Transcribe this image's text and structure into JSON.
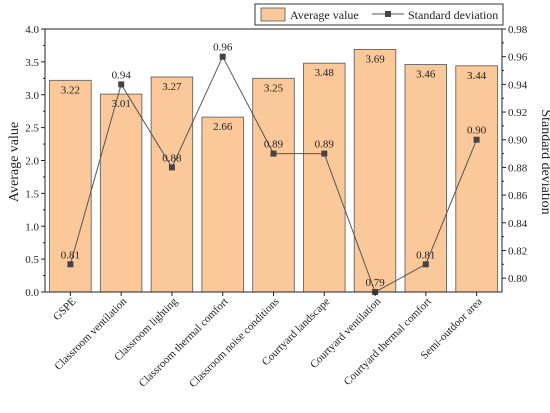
{
  "chart_data": {
    "type": "bar",
    "categories": [
      "GSPE",
      "Classroom ventilation",
      "Classroom lighting",
      "Classroom thermal comfort",
      "Classroom noise conditions",
      "Courtyard landscape",
      "Courtyard ventilation",
      "Courtyard thermal comfort",
      "Semi-outdoor area"
    ],
    "series": [
      {
        "name": "Average value",
        "type": "bar",
        "axis": "left",
        "values": [
          3.22,
          3.01,
          3.27,
          2.66,
          3.25,
          3.48,
          3.69,
          3.46,
          3.44
        ],
        "labels": [
          "3.22",
          "3.01",
          "3.27",
          "2.66",
          "3.25",
          "3.48",
          "3.69",
          "3.46",
          "3.44"
        ]
      },
      {
        "name": "Standard deviation",
        "type": "line",
        "axis": "right",
        "marker": "square",
        "values": [
          0.81,
          0.94,
          0.88,
          0.96,
          0.89,
          0.89,
          0.79,
          0.81,
          0.9
        ],
        "labels": [
          "0.81",
          "0.94",
          "0.88",
          "0.96",
          "0.89",
          "0.89",
          "0.79",
          "0.81",
          "0.90"
        ]
      }
    ],
    "ylabel": "Average value",
    "y2label": "Standard deviation",
    "ylim": [
      0,
      4.0
    ],
    "yticks": [
      "0.0",
      "0.5",
      "1.0",
      "1.5",
      "2.0",
      "2.5",
      "3.0",
      "3.5",
      "4.0"
    ],
    "y2lim": [
      0.79,
      0.98
    ],
    "y2ticks": [
      "0.80",
      "0.82",
      "0.84",
      "0.86",
      "0.88",
      "0.90",
      "0.92",
      "0.94",
      "0.96",
      "0.98"
    ],
    "legend_position": "top-right",
    "grid": false,
    "colors": {
      "bar_fill": "#FBC89A",
      "bar_stroke": "#555555",
      "line": "#555555",
      "marker": "#444444"
    }
  }
}
